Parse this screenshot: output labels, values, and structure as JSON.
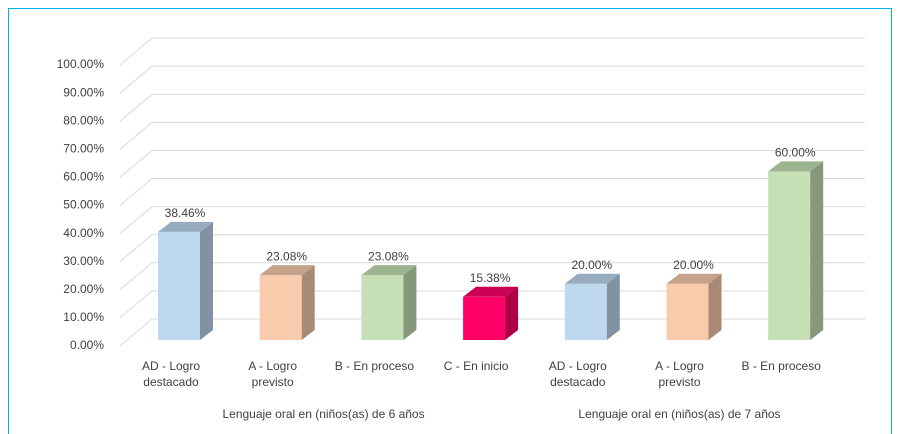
{
  "chart_data": {
    "type": "bar",
    "categories": [
      "AD - Logro destacado",
      "A - Logro previsto",
      "B - En proceso",
      "C - En inicio",
      "AD - Logro destacado",
      "A - Logro previsto",
      "B - En proceso"
    ],
    "group_labels": [
      "Lenguaje oral en (niños(as) de 6 años",
      "Lenguaje oral en (niños(as) de 7 años"
    ],
    "values": [
      38.46,
      23.08,
      23.08,
      15.38,
      20,
      20,
      60
    ],
    "value_labels": [
      "38.46%",
      "23.08%",
      "23.08%",
      "15.38%",
      "20.00%",
      "20.00%",
      "60.00%"
    ],
    "colors": [
      "#bdd7ee",
      "#f8cbad",
      "#c5e0b4",
      "#ff0066",
      "#bdd7ee",
      "#f8cbad",
      "#c5e0b4"
    ],
    "ylim": [
      0,
      100
    ],
    "yticks": [
      {
        "value": 0,
        "label": "0.00%"
      },
      {
        "value": 10,
        "label": "10.00%"
      },
      {
        "value": 20,
        "label": "20.00%"
      },
      {
        "value": 30,
        "label": "30.00%"
      },
      {
        "value": 40,
        "label": "40.00%"
      },
      {
        "value": 50,
        "label": "50.00%"
      },
      {
        "value": 60,
        "label": "60.00%"
      },
      {
        "value": 70,
        "label": "70.00%"
      },
      {
        "value": 80,
        "label": "80.00%"
      },
      {
        "value": 90,
        "label": "90.00%"
      },
      {
        "value": 100,
        "label": "100.00%"
      }
    ],
    "grid": true
  }
}
